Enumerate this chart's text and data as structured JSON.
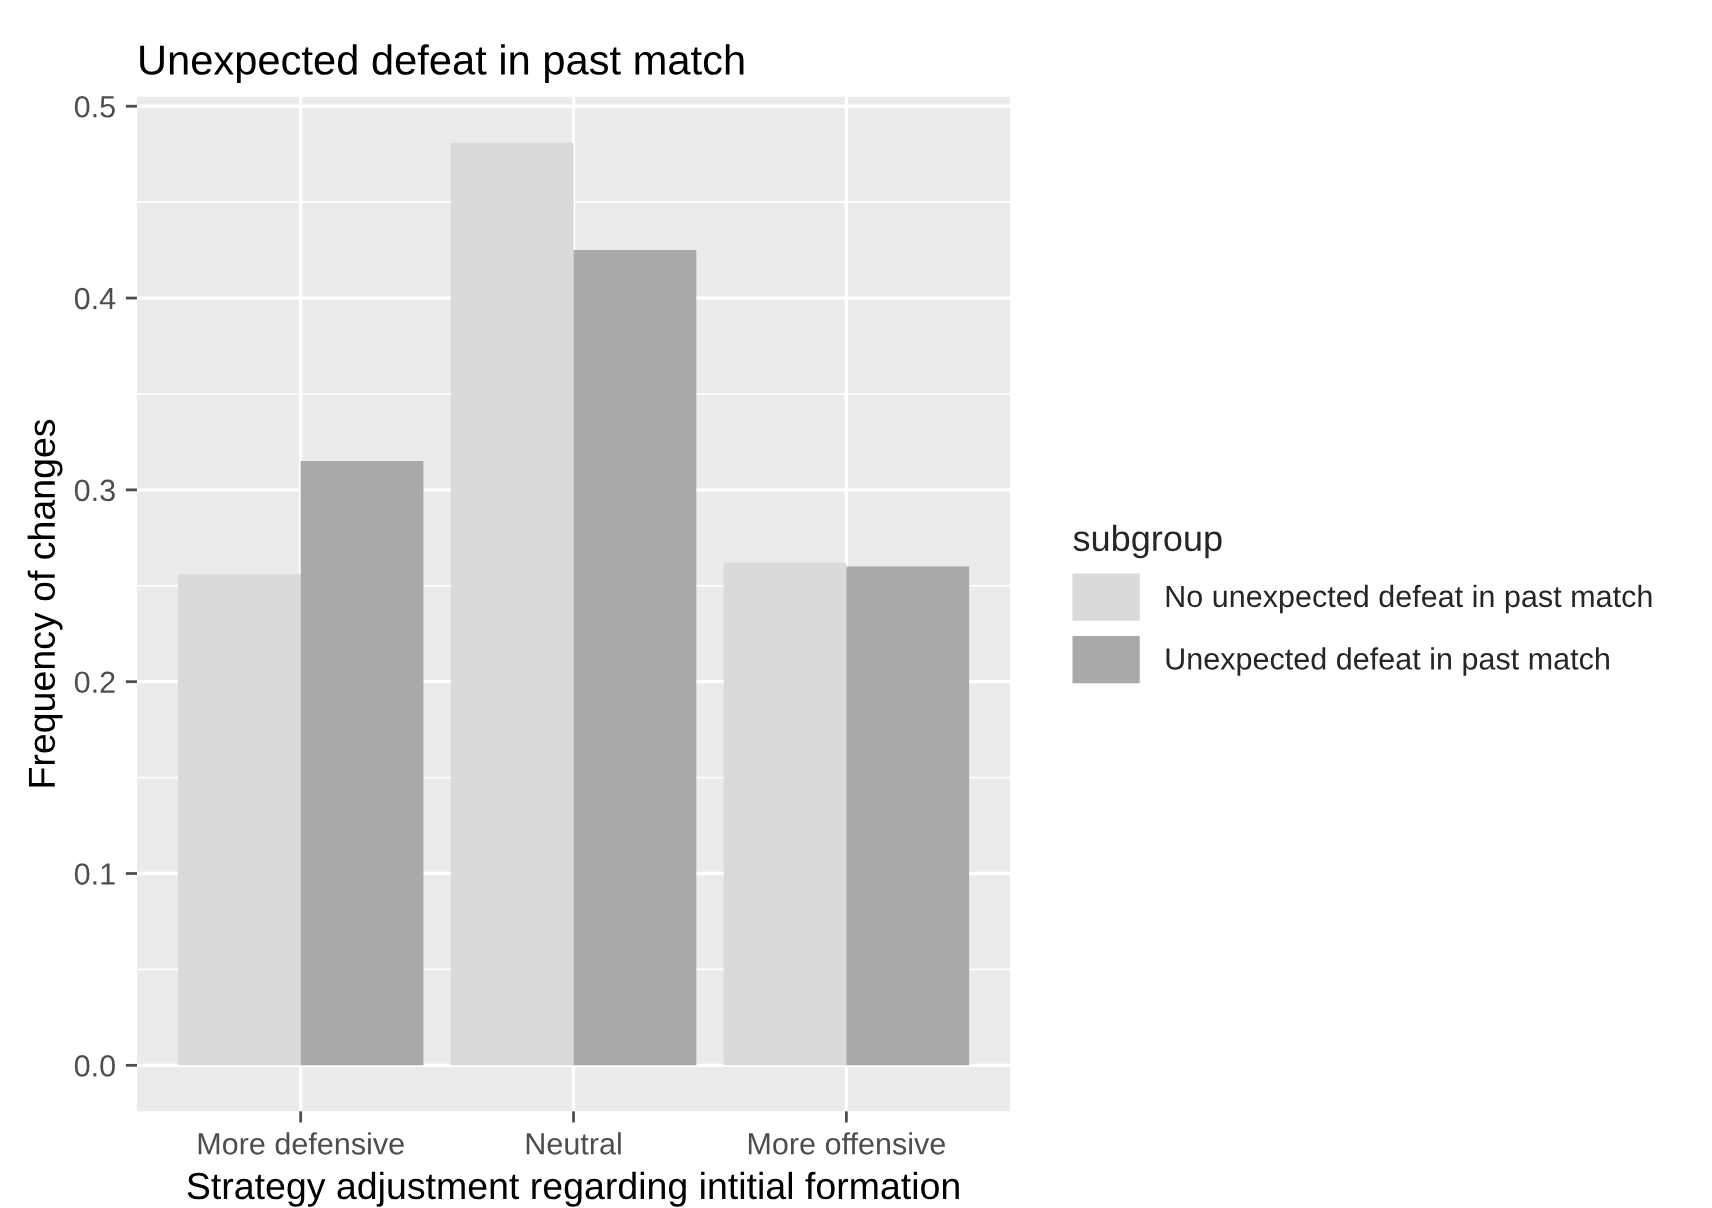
{
  "chart_data": {
    "type": "bar",
    "title": "Unexpected defeat in past match",
    "xlabel": "Strategy adjustment regarding intitial formation",
    "ylabel": "Frequency of changes",
    "legend_title": "subgroup",
    "categories": [
      "More defensive",
      "Neutral",
      "More offensive"
    ],
    "series": [
      {
        "name": "No unexpected defeat in past match",
        "color": "#dadada",
        "values": [
          0.256,
          0.481,
          0.262
        ]
      },
      {
        "name": "Unexpected defeat in past match",
        "color": "#a9a9a9",
        "values": [
          0.315,
          0.425,
          0.26
        ]
      }
    ],
    "ylim": [
      -0.024,
      0.505
    ],
    "yticks": [
      {
        "value": 0,
        "label": "0.0"
      },
      {
        "value": 0.1,
        "label": "0.1"
      },
      {
        "value": 0.2,
        "label": "0.2"
      },
      {
        "value": 0.3,
        "label": "0.3"
      },
      {
        "value": 0.4,
        "label": "0.4"
      },
      {
        "value": 0.5,
        "label": "0.5"
      }
    ],
    "grid": true,
    "legend": "right"
  }
}
